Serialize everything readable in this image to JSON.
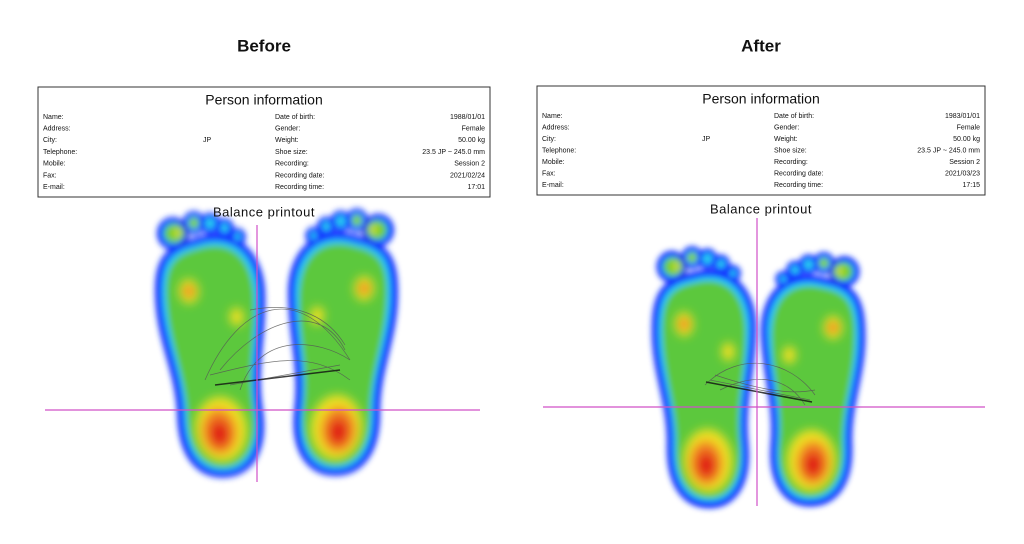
{
  "panels": [
    {
      "title": "Before",
      "info": {
        "title": "Person information",
        "left": [
          {
            "label": "Name:"
          },
          {
            "label": "Address:"
          },
          {
            "label": "City:",
            "value": "JP"
          },
          {
            "label": "Telephone:"
          },
          {
            "label": "Mobile:"
          },
          {
            "label": "Fax:"
          },
          {
            "label": "E-mail:"
          }
        ],
        "right": [
          {
            "label": "Date of birth:",
            "value": "1988/01/01"
          },
          {
            "label": "Gender:",
            "value": "Female"
          },
          {
            "label": "Weight:",
            "value": "50.00 kg"
          },
          {
            "label": "Shoe size:",
            "value": "23.5 JP ~ 245.0 mm"
          },
          {
            "label": "Recording:",
            "value": "Session 2"
          },
          {
            "label": "Recording date:",
            "value": "2021/02/24"
          },
          {
            "label": "Recording time:",
            "value": "17:01"
          }
        ]
      },
      "printout": "Balance printout"
    },
    {
      "title": "After",
      "info": {
        "title": "Person information",
        "left": [
          {
            "label": "Name:"
          },
          {
            "label": "Address:"
          },
          {
            "label": "City:",
            "value": "JP"
          },
          {
            "label": "Telephone:"
          },
          {
            "label": "Mobile:"
          },
          {
            "label": "Fax:"
          },
          {
            "label": "E-mail:"
          }
        ],
        "right": [
          {
            "label": "Date of birth:",
            "value": "1983/01/01"
          },
          {
            "label": "Gender:",
            "value": "Female"
          },
          {
            "label": "Weight:",
            "value": "50.00 kg"
          },
          {
            "label": "Shoe size:",
            "value": "23.5 JP ~ 245.0 mm"
          },
          {
            "label": "Recording:",
            "value": "Session 2"
          },
          {
            "label": "Recording date:",
            "value": "2021/03/23"
          },
          {
            "label": "Recording time:",
            "value": "17:15"
          }
        ]
      },
      "printout": "Balance printout"
    }
  ]
}
